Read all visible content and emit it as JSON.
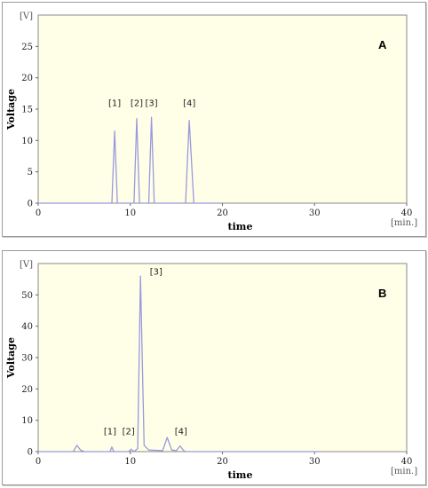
{
  "chart_data": [
    {
      "type": "line",
      "panel_label": "A",
      "xlabel": "time",
      "x_unit": "[min.]",
      "ylabel": "Voltage",
      "y_unit": "[V]",
      "xlim": [
        0,
        40
      ],
      "ylim": [
        0,
        30
      ],
      "x_ticks": [
        0,
        10,
        20,
        30,
        40
      ],
      "y_ticks": [
        0,
        5,
        10,
        15,
        20,
        25
      ],
      "colors": {
        "plot_bg": "#FFFFE8",
        "line": "#9999DD",
        "frame": "#888888"
      },
      "series": [
        {
          "x": [
            0,
            8.0,
            8.3,
            8.6,
            9.0,
            10.4,
            10.7,
            11.0,
            11.4,
            12.0,
            12.3,
            12.6,
            13.0,
            16.0,
            16.4,
            16.9,
            17.3,
            19.5
          ],
          "y": [
            0,
            0,
            11.5,
            0,
            0,
            0,
            13.5,
            0,
            0,
            0,
            13.7,
            0,
            0,
            0,
            13.2,
            0,
            0,
            0
          ]
        }
      ],
      "annotations": [
        {
          "text": "[1]",
          "x": 8.3,
          "y": 15.5
        },
        {
          "text": "[2]",
          "x": 10.7,
          "y": 15.5
        },
        {
          "text": "[3]",
          "x": 12.3,
          "y": 15.5
        },
        {
          "text": "[4]",
          "x": 16.4,
          "y": 15.5
        }
      ]
    },
    {
      "type": "line",
      "panel_label": "B",
      "xlabel": "time",
      "x_unit": "[min.]",
      "ylabel": "Voltage",
      "y_unit": "[V]",
      "xlim": [
        0,
        40
      ],
      "ylim": [
        0,
        60
      ],
      "x_ticks": [
        0,
        10,
        20,
        30,
        40
      ],
      "y_ticks": [
        0,
        10,
        20,
        30,
        40,
        50
      ],
      "colors": {
        "plot_bg": "#FFFFE8",
        "line": "#9999DD",
        "frame": "#888888"
      },
      "series": [
        {
          "x": [
            0,
            3.8,
            4.2,
            4.6,
            5.0,
            7.8,
            8.0,
            8.2,
            9.8,
            10.1,
            10.4,
            10.8,
            11.1,
            11.5,
            12.0,
            13.5,
            14.0,
            14.5,
            15.0,
            15.4,
            15.8,
            16.0,
            30.5
          ],
          "y": [
            0,
            0,
            2.0,
            0.5,
            0,
            0,
            1.5,
            0,
            0,
            0.8,
            0,
            1.0,
            56.0,
            2.0,
            0.5,
            0.3,
            4.5,
            0.5,
            0.3,
            1.8,
            0.3,
            0,
            0
          ]
        }
      ],
      "annotations": [
        {
          "text": "[1]",
          "x": 7.8,
          "y": 5.5
        },
        {
          "text": "[2]",
          "x": 9.8,
          "y": 5.5
        },
        {
          "text": "[3]",
          "x": 12.8,
          "y": 56.5
        },
        {
          "text": "[4]",
          "x": 15.5,
          "y": 5.5
        }
      ]
    }
  ]
}
